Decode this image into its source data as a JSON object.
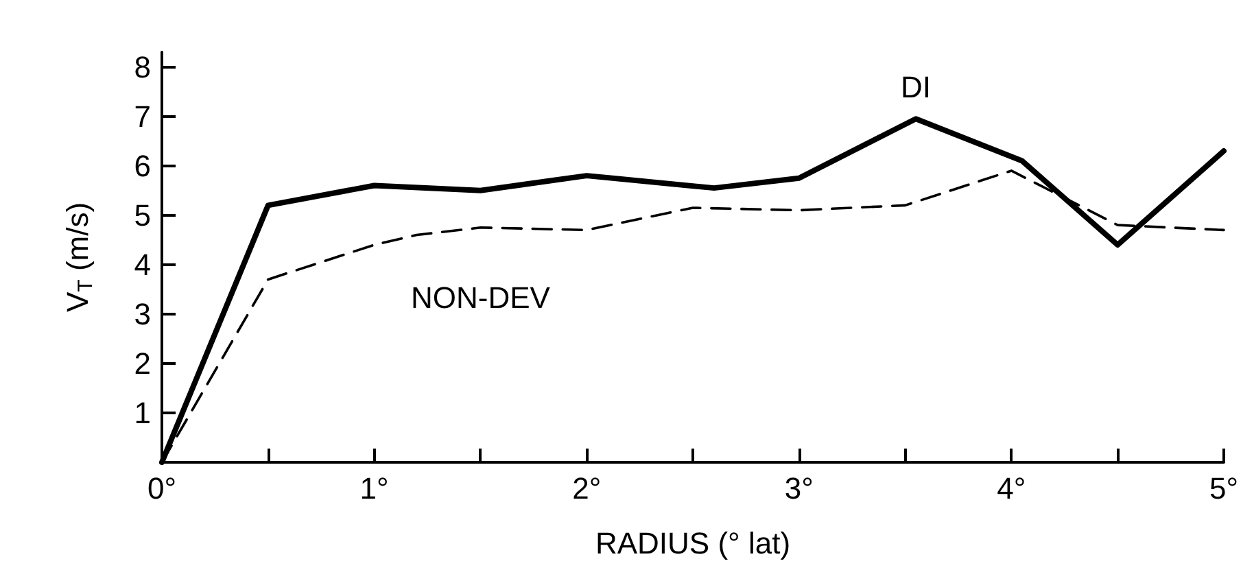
{
  "chart_data": {
    "type": "line",
    "xlabel": "RADIUS (° lat)",
    "ylabel": "V$_{T}$ (m/s)",
    "xlim": [
      0,
      5
    ],
    "ylim": [
      0,
      8.3
    ],
    "xticks": [
      {
        "value": 0,
        "label": "0°"
      },
      {
        "value": 0.5,
        "label": null
      },
      {
        "value": 1,
        "label": "1°"
      },
      {
        "value": 1.5,
        "label": null
      },
      {
        "value": 2,
        "label": "2°"
      },
      {
        "value": 2.5,
        "label": null
      },
      {
        "value": 3,
        "label": "3°"
      },
      {
        "value": 3.5,
        "label": null
      },
      {
        "value": 4,
        "label": "4°"
      },
      {
        "value": 4.5,
        "label": null
      },
      {
        "value": 5,
        "label": "5°"
      }
    ],
    "yticks": [
      {
        "value": 0,
        "label": null
      },
      1,
      2,
      3,
      4,
      5,
      6,
      7,
      8
    ],
    "grid": false,
    "legend": false,
    "marker": "none",
    "series": [
      {
        "name": "DI",
        "color": "#000000",
        "line_style": "solid",
        "x": [
          0,
          0.5,
          1,
          1.5,
          2,
          2.6,
          3,
          3.55,
          4.05,
          4.5,
          5
        ],
        "values": [
          0,
          5.2,
          5.6,
          5.5,
          5.8,
          5.55,
          5.75,
          6.95,
          6.1,
          4.4,
          6.3
        ]
      },
      {
        "name": "NON-DEV",
        "color": "#000000",
        "line_style": "dashed",
        "x": [
          0,
          0.5,
          1,
          1.2,
          1.5,
          2,
          2.5,
          3,
          3.5,
          4,
          4.5,
          5
        ],
        "values": [
          0,
          3.7,
          4.4,
          4.6,
          4.75,
          4.7,
          5.15,
          5.1,
          5.2,
          5.9,
          4.8,
          4.7
        ]
      }
    ]
  }
}
